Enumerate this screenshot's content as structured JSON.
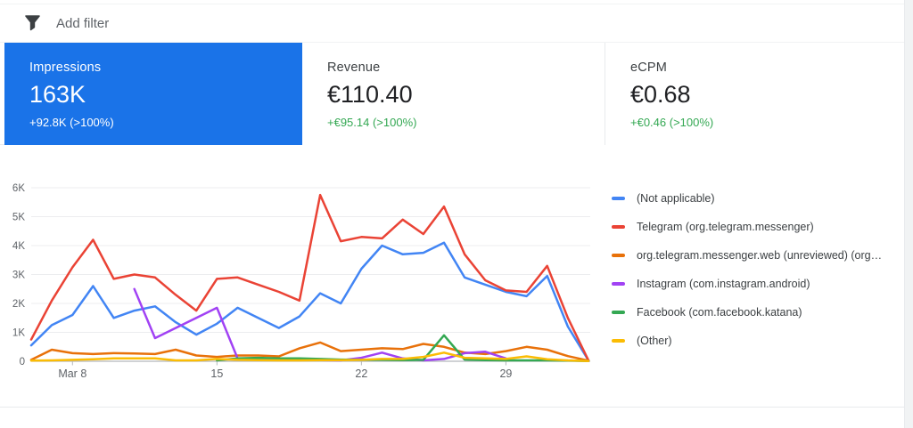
{
  "filter_bar": {
    "label": "Add filter"
  },
  "summary": {
    "selected_bg": "#1a73e8",
    "delta_positive_color": "#34a853",
    "cards": [
      {
        "title": "Impressions",
        "value": "163K",
        "delta": "+92.8K (>100%)",
        "selected": true
      },
      {
        "title": "Revenue",
        "value": "€110.40",
        "delta": "+€95.14 (>100%)",
        "selected": false
      },
      {
        "title": "eCPM",
        "value": "€0.68",
        "delta": "+€0.46 (>100%)",
        "selected": false
      }
    ]
  },
  "chart_data": {
    "type": "line",
    "metric": "Impressions",
    "grid": true,
    "legend_position": "right",
    "ylim": [
      0,
      6000
    ],
    "y_ticks": [
      0,
      1000,
      2000,
      3000,
      4000,
      5000,
      6000
    ],
    "y_tick_labels": [
      "0",
      "1K",
      "2K",
      "3K",
      "4K",
      "5K",
      "6K"
    ],
    "x": [
      "Mar 6",
      "Mar 7",
      "Mar 8",
      "Mar 9",
      "Mar 10",
      "Mar 11",
      "Mar 12",
      "Mar 13",
      "Mar 14",
      "Mar 15",
      "Mar 16",
      "Mar 17",
      "Mar 18",
      "Mar 19",
      "Mar 20",
      "Mar 21",
      "Mar 22",
      "Mar 23",
      "Mar 24",
      "Mar 25",
      "Mar 26",
      "Mar 27",
      "Mar 28",
      "Mar 29",
      "Mar 30",
      "Mar 31",
      "Apr 1",
      "Apr 2"
    ],
    "x_tick_labels": {
      "2": "Mar 8",
      "9": "15",
      "16": "22",
      "23": "29"
    },
    "series": [
      {
        "name": "(Not applicable)",
        "color": "#4285f4",
        "values": [
          550,
          1250,
          1600,
          2600,
          1500,
          1750,
          1900,
          1350,
          920,
          1300,
          1850,
          1500,
          1150,
          1550,
          2350,
          2000,
          3200,
          4000,
          3700,
          3750,
          4100,
          2900,
          2650,
          2400,
          2250,
          2950,
          1200,
          30
        ]
      },
      {
        "name": "Telegram (org.telegram.messenger)",
        "color": "#ea4335",
        "values": [
          750,
          2100,
          3250,
          4200,
          2850,
          3000,
          2900,
          2300,
          1750,
          2850,
          2900,
          2650,
          2400,
          2100,
          5750,
          4150,
          4300,
          4250,
          4900,
          4400,
          5350,
          3700,
          2800,
          2450,
          2400,
          3300,
          1500,
          30
        ]
      },
      {
        "name": "org.telegram.messenger.web (unreviewed) (org…",
        "color": "#e8710a",
        "values": [
          50,
          400,
          280,
          250,
          280,
          270,
          250,
          400,
          200,
          150,
          200,
          200,
          170,
          450,
          650,
          350,
          400,
          450,
          420,
          600,
          500,
          300,
          250,
          350,
          500,
          400,
          180,
          20
        ]
      },
      {
        "name": "Instagram (com.instagram.android)",
        "color": "#a142f4",
        "values": [
          null,
          null,
          null,
          null,
          null,
          2500,
          800,
          1150,
          1500,
          1850,
          100,
          50,
          40,
          40,
          40,
          30,
          120,
          300,
          100,
          30,
          80,
          280,
          330,
          100,
          null,
          null,
          null,
          null
        ]
      },
      {
        "name": "Facebook (com.facebook.katana)",
        "color": "#34a853",
        "values": [
          null,
          null,
          null,
          null,
          null,
          null,
          null,
          null,
          null,
          30,
          100,
          120,
          100,
          100,
          80,
          60,
          50,
          50,
          40,
          50,
          900,
          60,
          40,
          30,
          30,
          30,
          20,
          10
        ]
      },
      {
        "name": "(Other)",
        "color": "#fbbc04",
        "values": [
          20,
          30,
          50,
          70,
          100,
          100,
          100,
          30,
          30,
          80,
          50,
          40,
          30,
          30,
          40,
          40,
          50,
          80,
          80,
          150,
          300,
          120,
          100,
          80,
          170,
          70,
          30,
          10
        ]
      }
    ]
  }
}
